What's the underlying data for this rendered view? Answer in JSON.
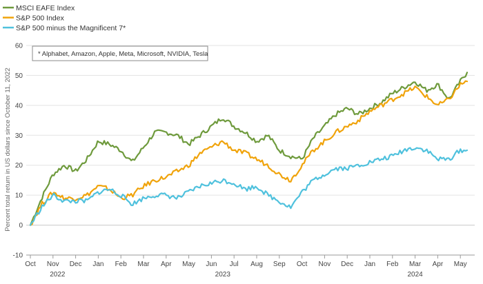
{
  "chart_data": {
    "type": "line",
    "ylabel": "Percent total return in US dollars since October 11, 2022",
    "ylim": [
      -10,
      60
    ],
    "yticks": [
      -10,
      0,
      10,
      20,
      30,
      40,
      50,
      60
    ],
    "grid": true,
    "legend_position": "top-left",
    "annotation": "* Alphabet, Amazon, Apple, Meta, Microsoft, NVIDIA, Tesla",
    "x_months": [
      "Oct",
      "Nov",
      "Dec",
      "Jan",
      "Feb",
      "Mar",
      "Apr",
      "May",
      "Jun",
      "Jul",
      "Aug",
      "Sep",
      "Oct",
      "Nov",
      "Dec",
      "Jan",
      "Feb",
      "Mar",
      "Apr",
      "May"
    ],
    "x_years": [
      {
        "label": "2022",
        "month_index": 1.2
      },
      {
        "label": "2023",
        "month_index": 8.5
      },
      {
        "label": "2024",
        "month_index": 17
      }
    ],
    "x": [
      0,
      0.5,
      1,
      1.5,
      2,
      2.5,
      3,
      3.5,
      4,
      4.5,
      5,
      5.5,
      6,
      6.5,
      7,
      7.5,
      8,
      8.5,
      9,
      9.5,
      10,
      10.5,
      11,
      11.5,
      12,
      12.5,
      13,
      13.5,
      14,
      14.5,
      15,
      15.5,
      16,
      16.5,
      17,
      17.5,
      18,
      18.5,
      19,
      19.3
    ],
    "series": [
      {
        "name": "MSCI EAFE Index",
        "color": "#6e9a3c",
        "values": [
          0,
          9,
          17,
          20,
          18,
          22,
          28,
          27,
          25,
          21,
          26,
          31,
          31,
          30,
          27,
          30,
          33,
          36,
          33,
          31,
          28,
          30,
          25,
          23,
          22,
          29,
          33,
          37,
          39,
          37,
          39,
          41,
          44,
          46,
          48,
          45,
          47,
          42,
          48,
          51
        ]
      },
      {
        "name": "S&P 500 Index",
        "color": "#f0a30a",
        "values": [
          0,
          7,
          11,
          9,
          9,
          10,
          13,
          12,
          9,
          10,
          13,
          15,
          16,
          18,
          20,
          24,
          26,
          28,
          25,
          24,
          22,
          20,
          17,
          15,
          20,
          25,
          28,
          31,
          33,
          35,
          38,
          40,
          42,
          44,
          46,
          43,
          40,
          42,
          47,
          48
        ]
      },
      {
        "name": "S&P 500 minus the Magnificent 7*",
        "color": "#4fc1dd",
        "values": [
          0,
          6,
          10,
          8,
          8,
          8,
          11,
          12,
          10,
          7,
          9,
          10,
          10,
          9,
          11,
          13,
          14,
          15,
          14,
          12,
          13,
          10,
          8,
          6,
          11,
          15,
          17,
          19,
          19,
          20,
          21,
          22,
          23,
          25,
          26,
          25,
          22,
          22,
          25,
          25
        ]
      }
    ]
  }
}
